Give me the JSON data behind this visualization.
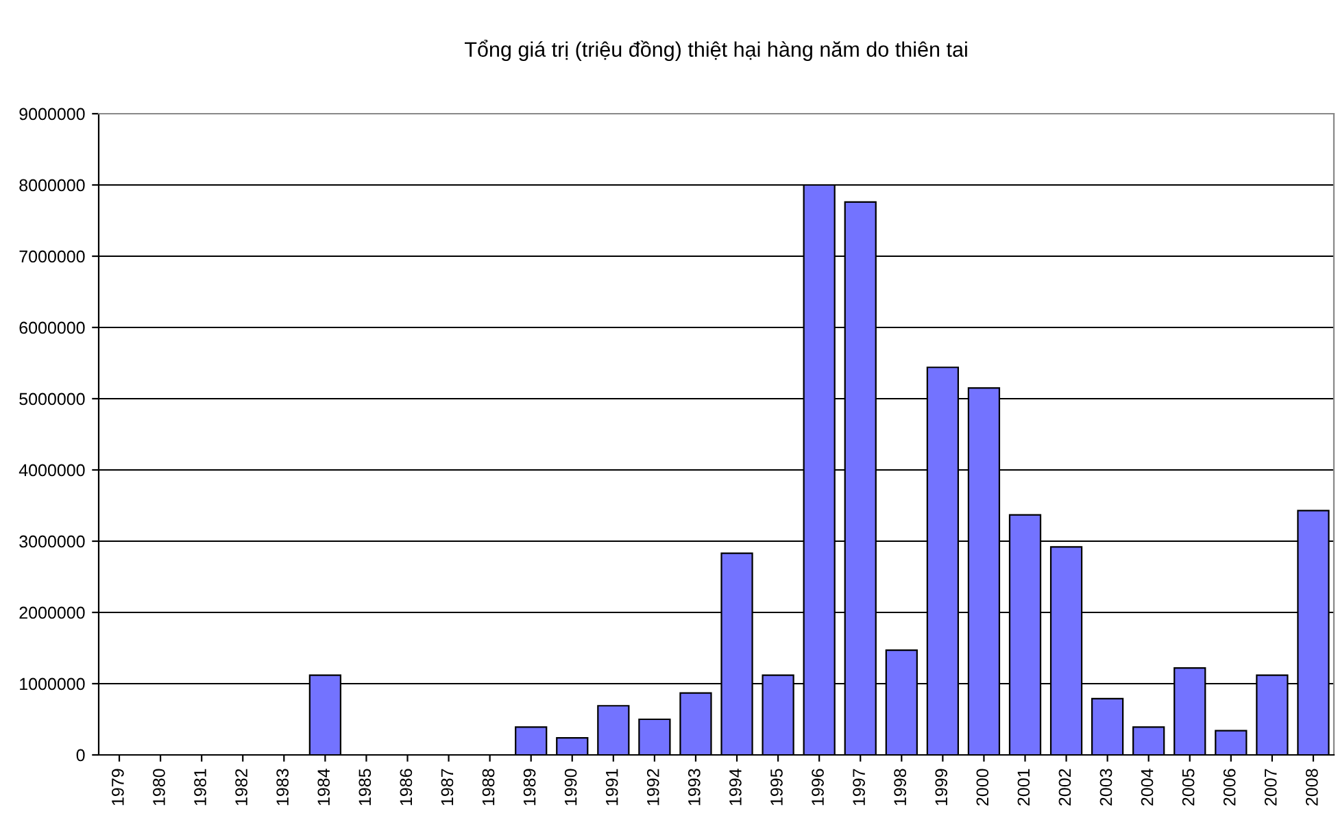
{
  "chart_data": {
    "type": "bar",
    "title": "Tổng giá trị (triệu đồng) thiệt hại hàng năm do thiên tai",
    "categories": [
      "1979",
      "1980",
      "1981",
      "1982",
      "1983",
      "1984",
      "1985",
      "1986",
      "1987",
      "1988",
      "1989",
      "1990",
      "1991",
      "1992",
      "1993",
      "1994",
      "1995",
      "1996",
      "1997",
      "1998",
      "1999",
      "2000",
      "2001",
      "2002",
      "2003",
      "2004",
      "2005",
      "2006",
      "2007",
      "2008"
    ],
    "values": [
      0,
      0,
      0,
      0,
      0,
      1120000,
      0,
      0,
      0,
      0,
      390000,
      240000,
      690000,
      500000,
      870000,
      2830000,
      1120000,
      8000000,
      7760000,
      1470000,
      5440000,
      5150000,
      3370000,
      2920000,
      790000,
      390000,
      1220000,
      340000,
      1120000,
      3430000
    ],
    "color": "#7373ff",
    "ylim": [
      0,
      9000000
    ],
    "yticks": [
      0,
      1000000,
      2000000,
      3000000,
      4000000,
      5000000,
      6000000,
      7000000,
      8000000,
      9000000
    ],
    "grid": "y"
  }
}
